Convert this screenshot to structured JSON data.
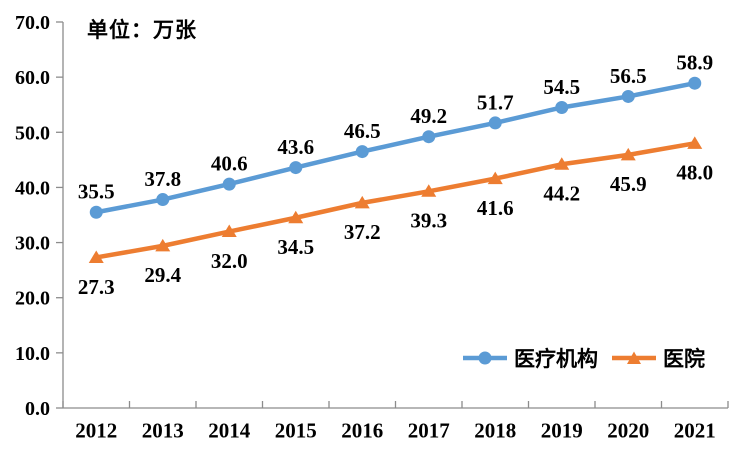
{
  "chart_data": {
    "type": "line",
    "unit_label": "单位：万张",
    "categories": [
      "2012",
      "2013",
      "2014",
      "2015",
      "2016",
      "2017",
      "2018",
      "2019",
      "2020",
      "2021"
    ],
    "series": [
      {
        "name": "医疗机构",
        "color": "#5B9BD5",
        "marker": "circle",
        "label_position": "above",
        "values": [
          35.5,
          37.8,
          40.6,
          43.6,
          46.5,
          49.2,
          51.7,
          54.5,
          56.5,
          58.9
        ]
      },
      {
        "name": "医院",
        "color": "#ED7D31",
        "marker": "triangle",
        "label_position": "below",
        "values": [
          27.3,
          29.4,
          32.0,
          34.5,
          37.2,
          39.3,
          41.6,
          44.2,
          45.9,
          48.0
        ]
      }
    ],
    "ylim": [
      0,
      70
    ],
    "y_tick_step": 10,
    "y_tick_labels": [
      "0.0",
      "10.0",
      "20.0",
      "30.0",
      "40.0",
      "50.0",
      "60.0",
      "70.0"
    ],
    "grid": false,
    "legend_position": "inside-bottom-right",
    "axis_color": "#8C8C8C",
    "text_color": "#000000"
  }
}
